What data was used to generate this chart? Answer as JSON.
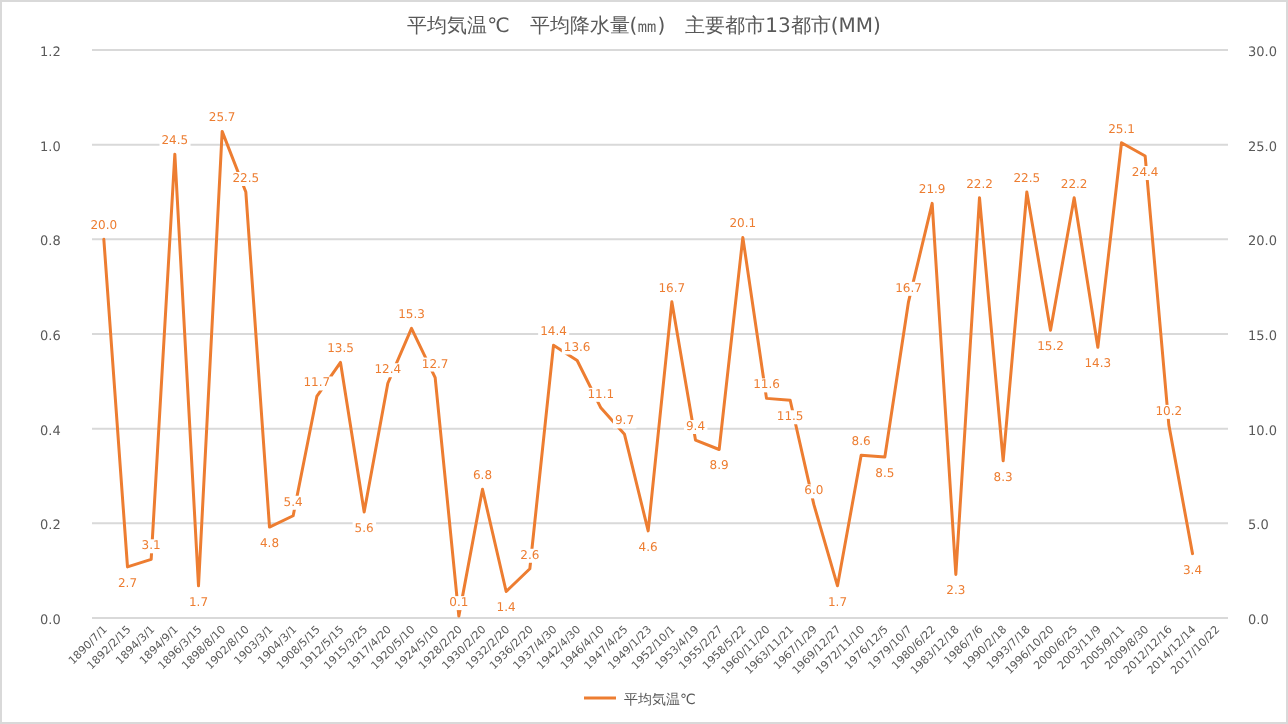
{
  "chart_data": {
    "type": "line",
    "title": "平均気温℃　平均降水量(㎜)　主要都市13都市(MM)",
    "categories": [
      "1890/7/1",
      "1892/2/15",
      "1894/3/1",
      "1894/9/1",
      "1896/3/15",
      "1898/8/10",
      "1902/8/10",
      "1903/3/1",
      "1904/3/1",
      "1908/5/15",
      "1912/5/15",
      "1915/3/25",
      "1917/4/20",
      "1920/5/10",
      "1924/5/10",
      "1928/2/20",
      "1930/2/20",
      "1932/2/20",
      "1936/2/20",
      "1937/4/30",
      "1942/4/30",
      "1946/4/10",
      "1947/4/25",
      "1949/1/23",
      "1952/10/1",
      "1953/4/19",
      "1955/2/27",
      "1958/5/22",
      "1960/11/20",
      "1963/11/21",
      "1967/1/29",
      "1969/12/27",
      "1972/11/10",
      "1976/12/5",
      "1979/10/7",
      "1980/6/22",
      "1983/12/18",
      "1986/7/6",
      "1990/2/18",
      "1993/7/18",
      "1996/10/20",
      "2000/6/25",
      "2003/11/9",
      "2005/9/11",
      "2009/8/30",
      "2012/12/16",
      "2014/12/14",
      "2017/10/22"
    ],
    "series": [
      {
        "name": "平均気温℃",
        "color": "#ed7d31",
        "axis": "y2",
        "values": [
          20.0,
          2.7,
          3.1,
          24.5,
          1.7,
          25.7,
          22.5,
          4.8,
          5.4,
          11.7,
          13.5,
          5.6,
          12.4,
          15.3,
          12.7,
          0.1,
          6.8,
          1.4,
          2.6,
          14.4,
          13.6,
          11.1,
          9.7,
          4.6,
          16.7,
          9.4,
          8.9,
          20.1,
          11.6,
          11.5,
          6.0,
          1.7,
          8.6,
          8.5,
          16.7,
          21.9,
          2.3,
          22.2,
          8.3,
          22.5,
          15.2,
          22.2,
          14.3,
          25.1,
          24.4,
          10.2,
          3.4,
          null
        ],
        "value_labels": [
          "20.0",
          "2.7",
          "3.1",
          "24.5",
          "1.7",
          "25.7",
          "22.5",
          "4.8",
          "5.4",
          "11.7",
          "13.5",
          "5.6",
          "12.4",
          "15.3",
          "12.7",
          "0.1",
          "6.8",
          "1.4",
          "2.6",
          "14.4",
          "13.6",
          "11.1",
          "9.7",
          "4.6",
          "16.7",
          "9.4",
          "8.9",
          "20.1",
          "11.6",
          "11.5",
          "6.0",
          "1.7",
          "8.6",
          "8.5",
          "16.7",
          "21.9",
          "2.3",
          "22.2",
          "8.3",
          "22.5",
          "15.2",
          "22.2",
          "14.3",
          "25.1",
          "24.4",
          "10.2",
          "3.4",
          null
        ]
      }
    ],
    "ylim": [
      0,
      1.2
    ],
    "yticks": [
      {
        "value": 0,
        "label": "0.0"
      },
      {
        "value": 0.2,
        "label": "0.2"
      },
      {
        "value": 0.4,
        "label": "0.4"
      },
      {
        "value": 0.6,
        "label": "0.6"
      },
      {
        "value": 0.8,
        "label": "0.8"
      },
      {
        "value": 1,
        "label": "1.0"
      },
      {
        "value": 1.2,
        "label": "1.2"
      }
    ],
    "y2lim": [
      0,
      30
    ],
    "y2ticks": [
      {
        "value": 0,
        "label": "0.0"
      },
      {
        "value": 5,
        "label": "5.0"
      },
      {
        "value": 10,
        "label": "10.0"
      },
      {
        "value": 15,
        "label": "15.0"
      },
      {
        "value": 20,
        "label": "20.0"
      },
      {
        "value": 25,
        "label": "25.0"
      },
      {
        "value": 30,
        "label": "30.0"
      }
    ],
    "grid": "y",
    "legend": "bottom",
    "marker": "none",
    "line_style": "solid"
  }
}
